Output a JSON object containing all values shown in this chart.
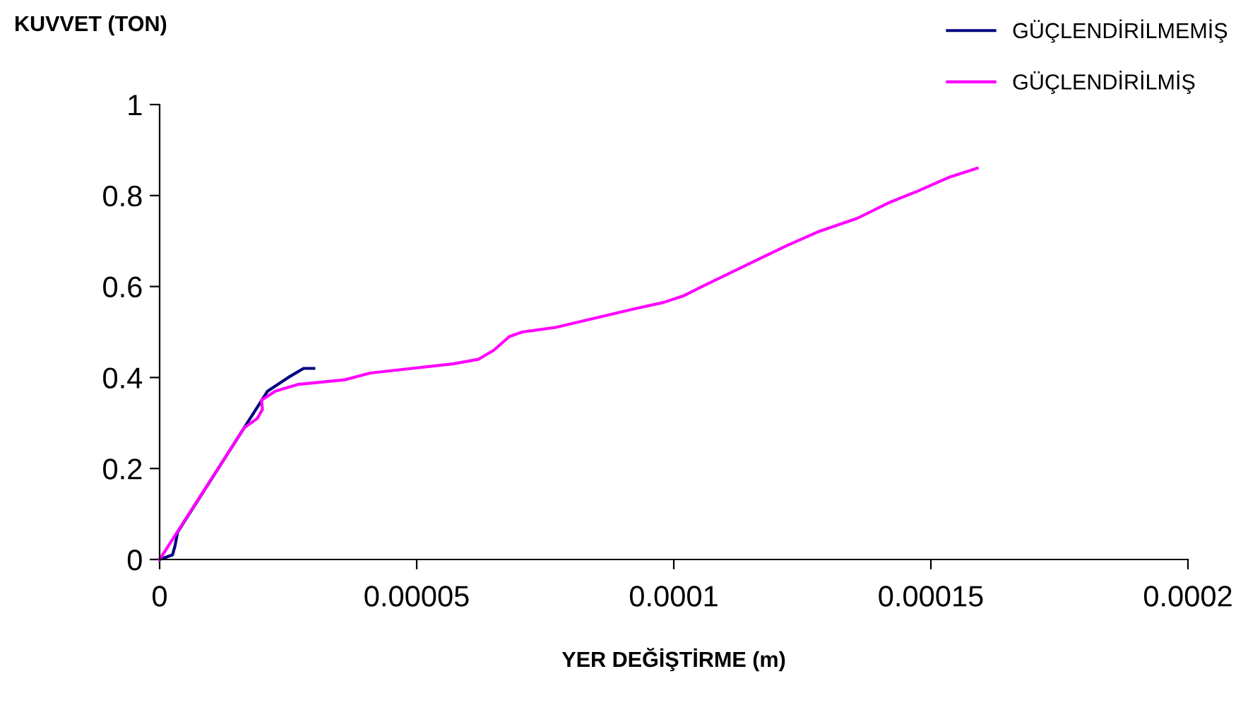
{
  "chart_data": {
    "type": "line",
    "title": "KUVVET (TON)",
    "xlabel": "YER DEĞİŞTİRME (m)",
    "xlim": [
      0,
      0.0002
    ],
    "ylim": [
      0,
      1
    ],
    "xticks": [
      {
        "value": 0,
        "label": "0"
      },
      {
        "value": 5e-05,
        "label": "0.00005"
      },
      {
        "value": 0.0001,
        "label": "0.0001"
      },
      {
        "value": 0.00015,
        "label": "0.00015"
      },
      {
        "value": 0.0002,
        "label": "0.0002"
      }
    ],
    "yticks": [
      0,
      0.2,
      0.4,
      0.6,
      0.8,
      1
    ],
    "grid": false,
    "legend": "top right",
    "marker": "none",
    "line_style": "solid",
    "series": [
      {
        "name": "GÜÇLENDİRİLMEMİŞ",
        "color": "#000080",
        "x": [
          0,
          2.5e-06,
          3e-06,
          3.5e-06,
          2.1e-05,
          2.5e-05,
          2.8e-05,
          3e-05
        ],
        "values": [
          0,
          0.01,
          0.03,
          0.06,
          0.37,
          0.4,
          0.42,
          0.42
        ]
      },
      {
        "name": "GÜÇLENDİRİLMİŞ",
        "color": "#ff00ff",
        "x": [
          0,
          1.65e-05,
          1.9e-05,
          2e-05,
          1.98e-05,
          2.25e-05,
          2.7e-05,
          3.6e-05,
          4.1e-05,
          5.7e-05,
          6.2e-05,
          6.5e-05,
          6.8e-05,
          7.05e-05,
          7.7e-05,
          9.2e-05,
          9.8e-05,
          0.000102,
          0.0001055,
          0.0001165,
          0.000122,
          0.000128,
          0.0001357,
          0.000142,
          0.0001475,
          0.0001535,
          0.000159
        ],
        "values": [
          0,
          0.29,
          0.31,
          0.33,
          0.35,
          0.37,
          0.385,
          0.395,
          0.41,
          0.43,
          0.44,
          0.46,
          0.49,
          0.5,
          0.51,
          0.55,
          0.565,
          0.58,
          0.6,
          0.66,
          0.69,
          0.72,
          0.75,
          0.785,
          0.81,
          0.84,
          0.86
        ]
      }
    ]
  }
}
